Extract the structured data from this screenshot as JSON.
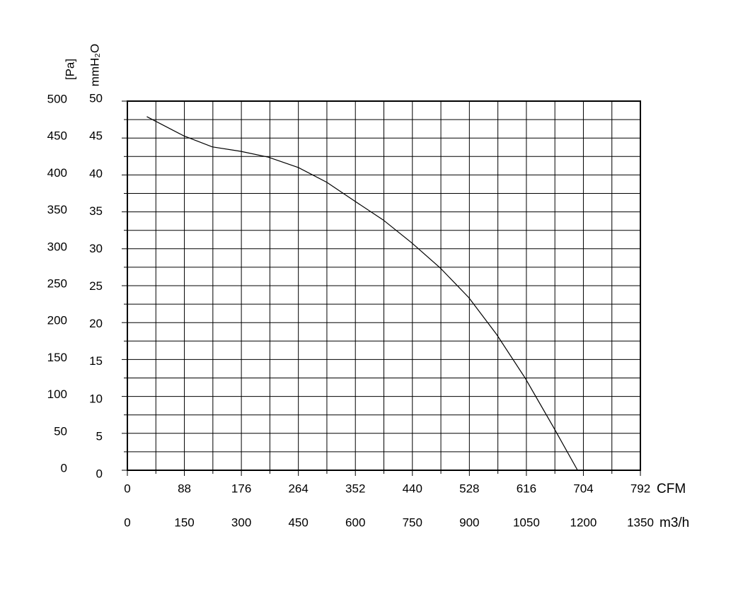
{
  "chart_data": {
    "type": "line",
    "y_label": "[Pa]",
    "y2_label": "mmH₂O",
    "x_label": "CFM",
    "x2_label": "m3/h",
    "x": [
      30,
      87,
      131,
      175,
      218,
      264,
      308,
      352,
      395,
      439,
      483,
      527,
      570,
      614,
      658,
      695
    ],
    "series": [
      {
        "color": "#000000",
        "values": [
          479,
          453,
          438,
          432,
          424,
          410,
          390,
          364,
          339,
          308,
          274,
          234,
          184,
          125,
          58,
          0
        ]
      }
    ],
    "xlim": [
      0,
      792
    ],
    "xticks": [
      0,
      88,
      176,
      264,
      352,
      440,
      528,
      616,
      704,
      792
    ],
    "x2lim": [
      0,
      1350
    ],
    "x2ticks": [
      0,
      150,
      300,
      450,
      600,
      750,
      900,
      1050,
      1200,
      1350
    ],
    "ylim": [
      0,
      500
    ],
    "yticks": [
      0,
      50,
      100,
      150,
      200,
      250,
      300,
      350,
      400,
      450,
      500
    ],
    "y2lim": [
      0,
      50
    ],
    "y2ticks": [
      0,
      5,
      10,
      15,
      20,
      25,
      30,
      35,
      40,
      45,
      50
    ],
    "grid": true
  }
}
